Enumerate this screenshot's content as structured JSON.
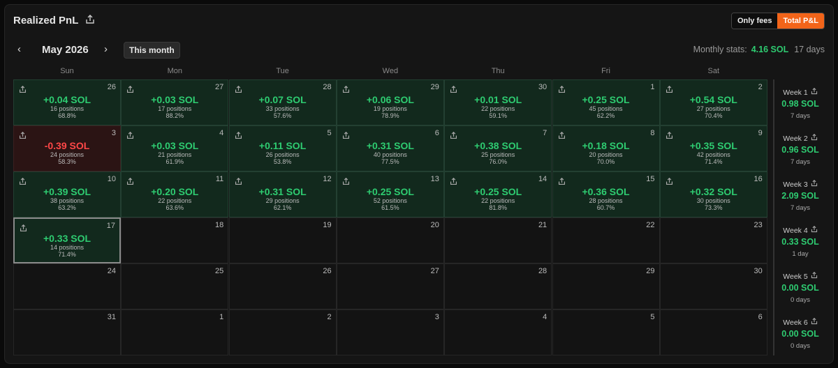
{
  "header": {
    "title": "Realized PnL",
    "toggle": [
      "Only fees",
      "Total P&L"
    ]
  },
  "nav": {
    "month": "May 2026",
    "this_month": "This month",
    "stats_label": "Monthly stats:",
    "stats_value": "4.16 SOL",
    "stats_days": "17 days"
  },
  "weekdays": [
    "Sun",
    "Mon",
    "Tue",
    "Wed",
    "Thu",
    "Fri",
    "Sat"
  ],
  "days": [
    {
      "day": 26,
      "pnl": "+0.04 SOL",
      "positions": "16 positions",
      "winrate": "68.8%"
    },
    {
      "day": 27,
      "pnl": "+0.03 SOL",
      "positions": "17 positions",
      "winrate": "88.2%"
    },
    {
      "day": 28,
      "pnl": "+0.07 SOL",
      "positions": "33 positions",
      "winrate": "57.6%"
    },
    {
      "day": 29,
      "pnl": "+0.06 SOL",
      "positions": "19 positions",
      "winrate": "78.9%"
    },
    {
      "day": 30,
      "pnl": "+0.01 SOL",
      "positions": "22 positions",
      "winrate": "59.1%"
    },
    {
      "day": 1,
      "pnl": "+0.25 SOL",
      "positions": "45 positions",
      "winrate": "62.2%"
    },
    {
      "day": 2,
      "pnl": "+0.54 SOL",
      "positions": "27 positions",
      "winrate": "70.4%"
    },
    {
      "day": 3,
      "pnl": "-0.39 SOL",
      "positions": "24 positions",
      "winrate": "58.3%"
    },
    {
      "day": 4,
      "pnl": "+0.03 SOL",
      "positions": "21 positions",
      "winrate": "61.9%"
    },
    {
      "day": 5,
      "pnl": "+0.11 SOL",
      "positions": "26 positions",
      "winrate": "53.8%"
    },
    {
      "day": 6,
      "pnl": "+0.31 SOL",
      "positions": "40 positions",
      "winrate": "77.5%"
    },
    {
      "day": 7,
      "pnl": "+0.38 SOL",
      "positions": "25 positions",
      "winrate": "76.0%"
    },
    {
      "day": 8,
      "pnl": "+0.18 SOL",
      "positions": "20 positions",
      "winrate": "70.0%"
    },
    {
      "day": 9,
      "pnl": "+0.35 SOL",
      "positions": "42 positions",
      "winrate": "71.4%"
    },
    {
      "day": 10,
      "pnl": "+0.39 SOL",
      "positions": "38 positions",
      "winrate": "63.2%"
    },
    {
      "day": 11,
      "pnl": "+0.20 SOL",
      "positions": "22 positions",
      "winrate": "63.6%"
    },
    {
      "day": 12,
      "pnl": "+0.31 SOL",
      "positions": "29 positions",
      "winrate": "62.1%"
    },
    {
      "day": 13,
      "pnl": "+0.25 SOL",
      "positions": "52 positions",
      "winrate": "61.5%"
    },
    {
      "day": 14,
      "pnl": "+0.25 SOL",
      "positions": "22 positions",
      "winrate": "81.8%"
    },
    {
      "day": 15,
      "pnl": "+0.36 SOL",
      "positions": "28 positions",
      "winrate": "60.7%"
    },
    {
      "day": 16,
      "pnl": "+0.32 SOL",
      "positions": "30 positions",
      "winrate": "73.3%"
    },
    {
      "day": 17,
      "pnl": "+0.33 SOL",
      "positions": "14 positions",
      "winrate": "71.4%",
      "today": true
    },
    {
      "day": 18
    },
    {
      "day": 19
    },
    {
      "day": 20
    },
    {
      "day": 21
    },
    {
      "day": 22
    },
    {
      "day": 23
    },
    {
      "day": 24
    },
    {
      "day": 25
    },
    {
      "day": 26
    },
    {
      "day": 27
    },
    {
      "day": 28
    },
    {
      "day": 29
    },
    {
      "day": 30
    },
    {
      "day": 31
    },
    {
      "day": 1
    },
    {
      "day": 2
    },
    {
      "day": 3
    },
    {
      "day": 4
    },
    {
      "day": 5
    },
    {
      "day": 6
    }
  ],
  "weeks": [
    {
      "label": "Week 1",
      "pnl": "0.98 SOL",
      "days": "7 days"
    },
    {
      "label": "Week 2",
      "pnl": "0.96 SOL",
      "days": "7 days"
    },
    {
      "label": "Week 3",
      "pnl": "2.09 SOL",
      "days": "7 days"
    },
    {
      "label": "Week 4",
      "pnl": "0.33 SOL",
      "days": "1 day"
    },
    {
      "label": "Week 5",
      "pnl": "0.00 SOL",
      "days": "0 days"
    },
    {
      "label": "Week 6",
      "pnl": "0.00 SOL",
      "days": "0 days"
    }
  ]
}
